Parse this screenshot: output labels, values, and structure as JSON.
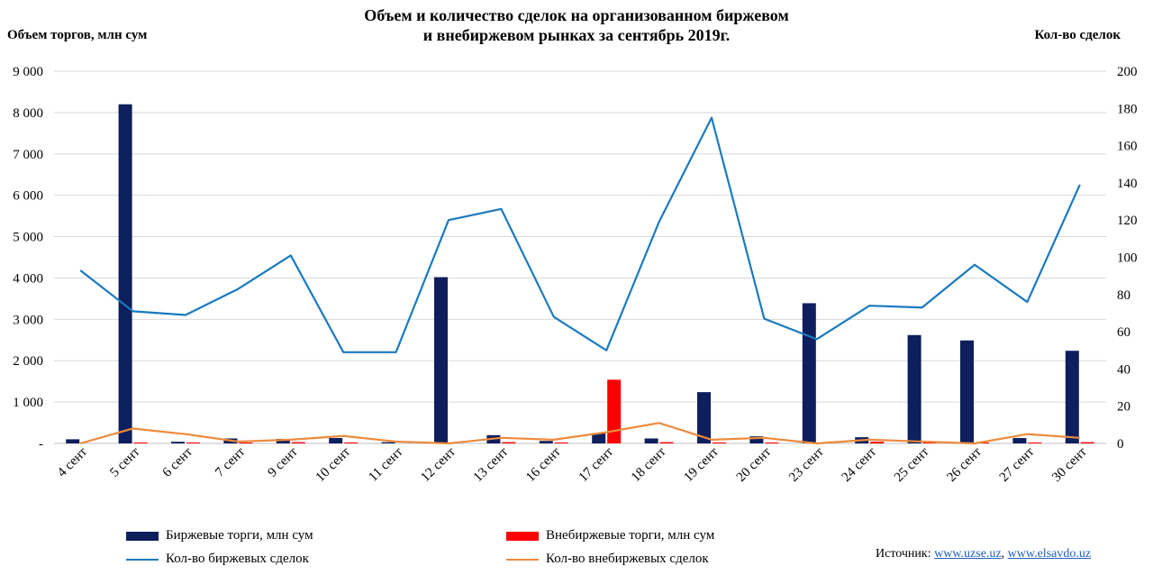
{
  "title_line1": "Объем и количество сделок на организованном биржевом",
  "title_line2": "и внебиржевом рынках за сентябрь 2019г.",
  "y_left_title": "Объем торгов, млн сум",
  "y_right_title": "Кол-во сделок",
  "legend": {
    "exchange_trades": "Биржевые торги, млн сум",
    "otc_trades": "Внебиржевые торги, млн сум",
    "exchange_deals": "Кол-во биржевых сделок",
    "otc_deals": "Кол-во внебиржевых сделок"
  },
  "source": {
    "label": "Источник:",
    "link1": "www.uzse.uz",
    "separator": ",",
    "link2": "www.elsavdo.uz"
  },
  "colors": {
    "exchange_trades": "#0d1f5c",
    "otc_trades": "#ff0000",
    "exchange_deals": "#1a7abf",
    "otc_deals": "#ed8a3d",
    "grid": "#d9d9d9"
  },
  "chart_data": {
    "type": "bar",
    "categories": [
      "4 сент",
      "5 сент",
      "6 сент",
      "7 сент",
      "9 сент",
      "10 сент",
      "11 сент",
      "12 сент",
      "13 сент",
      "16 сент",
      "17 сент",
      "18 сент",
      "19 сент",
      "20 сент",
      "23 сент",
      "24 сент",
      "25 сент",
      "26 сент",
      "27 сент",
      "30 сент"
    ],
    "y_left": {
      "ylim": [
        0,
        9000
      ],
      "ticks": [
        0,
        1000,
        2000,
        3000,
        4000,
        5000,
        6000,
        7000,
        8000,
        9000
      ],
      "tick_labels": [
        "-",
        "1 000",
        "2 000",
        "3 000",
        "4 000",
        "5 000",
        "6 000",
        "7 000",
        "8 000",
        "9 000"
      ]
    },
    "y_right": {
      "ylim": [
        0,
        200
      ],
      "ticks": [
        0,
        20,
        40,
        60,
        80,
        100,
        120,
        140,
        160,
        180,
        200
      ],
      "tick_labels": [
        "0",
        "20",
        "40",
        "60",
        "80",
        "100",
        "120",
        "140",
        "160",
        "180",
        "200"
      ]
    },
    "grid": true,
    "legend_position": "bottom",
    "series": [
      {
        "name": "Биржевые торги, млн сум",
        "kind": "bar",
        "axis": "left",
        "values": [
          100,
          8200,
          40,
          120,
          110,
          130,
          30,
          4020,
          200,
          60,
          250,
          120,
          1240,
          170,
          3390,
          150,
          2620,
          2490,
          130,
          2240
        ]
      },
      {
        "name": "Внебиржевые торги, млн сум",
        "kind": "bar",
        "axis": "left",
        "values": [
          0,
          20,
          10,
          10,
          30,
          20,
          0,
          0,
          30,
          20,
          1540,
          30,
          20,
          20,
          0,
          40,
          20,
          10,
          20,
          30
        ]
      },
      {
        "name": "Кол-во биржевых сделок",
        "kind": "line",
        "axis": "right",
        "values": [
          93,
          71,
          69,
          83,
          101,
          49,
          49,
          120,
          126,
          68,
          50,
          119,
          175,
          67,
          56,
          74,
          73,
          96,
          76,
          139
        ]
      },
      {
        "name": "Кол-во внебиржевых сделок",
        "kind": "line",
        "axis": "right",
        "values": [
          0,
          8,
          5,
          1,
          2,
          4,
          1,
          0,
          3,
          2,
          6,
          11,
          2,
          3,
          0,
          2,
          1,
          0,
          5,
          3
        ]
      }
    ]
  }
}
